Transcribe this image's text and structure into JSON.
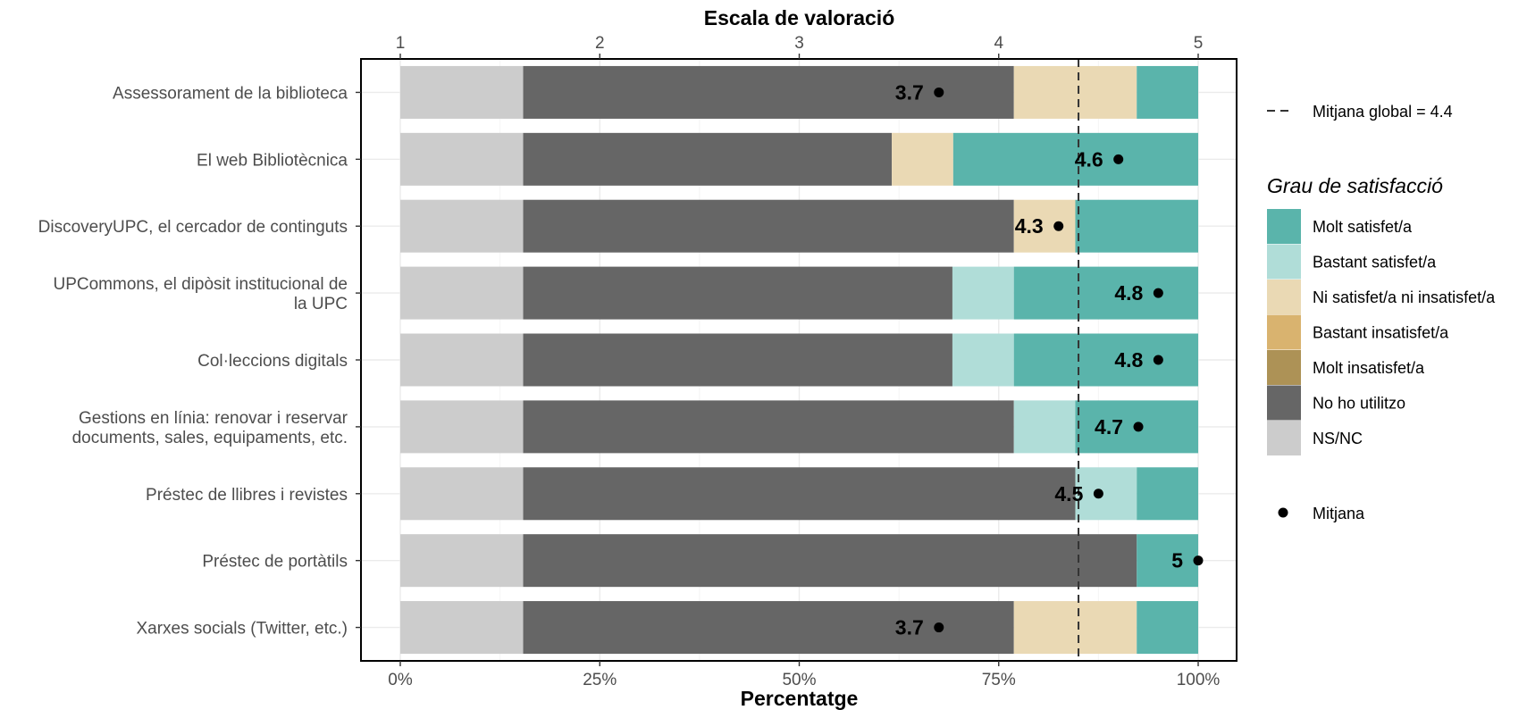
{
  "chart_data": {
    "type": "bar",
    "orientation": "horizontal",
    "stacked": true,
    "xlabel": "Percentatge",
    "x_ticks": [
      "0%",
      "25%",
      "50%",
      "75%",
      "100%"
    ],
    "xlim": [
      0,
      100
    ],
    "secondary_axis": {
      "title": "Escala de valoració",
      "ticks": [
        "1",
        "2",
        "3",
        "4",
        "5"
      ],
      "range": [
        1,
        5
      ]
    },
    "grid": true,
    "legend_position": "right",
    "categories": [
      "Assessorament de la biblioteca",
      "El web Bibliotècnica",
      "DiscoveryUPC, el cercador de continguts",
      "UPCommons, el dipòsit institucional de la UPC",
      "Col·leccions digitals",
      "Gestions en línia: renovar i reservar documents, sales, equipaments, etc.",
      "Préstec de llibres i revistes",
      "Préstec de portàtils",
      "Xarxes socials (Twitter, etc.)"
    ],
    "category_lines": [
      [
        "Assessorament de la biblioteca"
      ],
      [
        "El web Bibliotècnica"
      ],
      [
        "DiscoveryUPC, el cercador de continguts"
      ],
      [
        "UPCommons, el dipòsit institucional de",
        "la UPC"
      ],
      [
        "Col·leccions digitals"
      ],
      [
        "Gestions en línia: renovar i reservar",
        "documents, sales, equipaments, etc."
      ],
      [
        "Préstec de llibres i revistes"
      ],
      [
        "Préstec de portàtils"
      ],
      [
        "Xarxes socials (Twitter, etc.)"
      ]
    ],
    "stack_order": [
      "NS/NC",
      "No ho utilitzo",
      "Molt insatisfet/a",
      "Bastant insatisfet/a",
      "Ni satisfet/a ni insatisfet/a",
      "Bastant satisfet/a",
      "Molt satisfet/a"
    ],
    "series": [
      {
        "name": "NS/NC",
        "color": "#cccccc",
        "values": [
          15.4,
          15.4,
          15.4,
          15.4,
          15.4,
          15.4,
          15.4,
          15.4,
          15.4
        ]
      },
      {
        "name": "No ho utilitzo",
        "color": "#666666",
        "values": [
          61.5,
          46.2,
          61.5,
          53.8,
          53.8,
          61.5,
          69.2,
          76.9,
          61.5
        ]
      },
      {
        "name": "Molt insatisfet/a",
        "color": "#ad9256",
        "values": [
          0,
          0,
          0,
          0,
          0,
          0,
          0,
          0,
          0
        ]
      },
      {
        "name": "Bastant insatisfet/a",
        "color": "#d9b36f",
        "values": [
          0,
          0,
          0,
          0,
          0,
          0,
          0,
          0,
          0
        ]
      },
      {
        "name": "Ni satisfet/a ni insatisfet/a",
        "color": "#ead9b4",
        "values": [
          15.4,
          7.7,
          7.7,
          0,
          0,
          0,
          0,
          0,
          15.4
        ]
      },
      {
        "name": "Bastant satisfet/a",
        "color": "#b0ddd8",
        "values": [
          0,
          0,
          0,
          7.7,
          7.7,
          7.7,
          7.7,
          0,
          0
        ]
      },
      {
        "name": "Molt satisfet/a",
        "color": "#5ab4ab",
        "values": [
          7.7,
          30.7,
          15.4,
          23.1,
          23.1,
          15.4,
          7.7,
          7.7,
          7.7
        ]
      }
    ],
    "means": [
      3.7,
      4.6,
      4.3,
      4.8,
      4.8,
      4.7,
      4.5,
      5.0,
      3.7
    ],
    "mean_labels": [
      "3.7",
      "4.6",
      "4.3",
      "4.8",
      "4.8",
      "4.7",
      "4.5",
      "5",
      "3.7"
    ],
    "global_mean": 4.4,
    "global_mean_label": "Mitjana global =  4.4",
    "legend_title": "Grau de satisfacció",
    "legend_items": [
      {
        "name": "Molt satisfet/a",
        "color": "#5ab4ab"
      },
      {
        "name": "Bastant satisfet/a",
        "color": "#b0ddd8"
      },
      {
        "name": "Ni satisfet/a ni insatisfet/a",
        "color": "#ead9b4"
      },
      {
        "name": "Bastant insatisfet/a",
        "color": "#d9b36f"
      },
      {
        "name": "Molt insatisfet/a",
        "color": "#ad9256"
      },
      {
        "name": "No ho utilitzo",
        "color": "#666666"
      },
      {
        "name": "NS/NC",
        "color": "#cccccc"
      }
    ],
    "mean_legend_label": "Mitjana"
  }
}
